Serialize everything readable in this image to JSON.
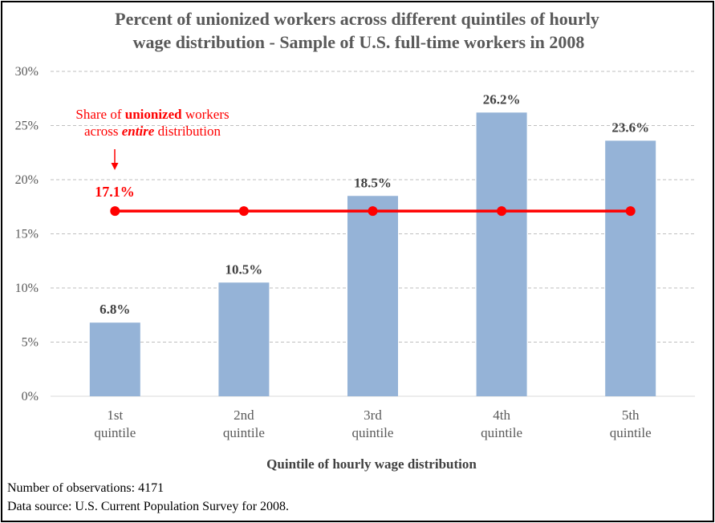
{
  "chart_data": {
    "type": "bar",
    "title_line1": "Percent of unionized workers across different quintiles of hourly",
    "title_line2": "wage distribution - Sample of U.S. full-time workers in 2008",
    "xlabel": "Quintile of hourly wage distribution",
    "ylabel": "",
    "ylim": [
      0,
      30
    ],
    "yticks": [
      0,
      5,
      10,
      15,
      20,
      25,
      30
    ],
    "ytick_labels": [
      "0%",
      "5%",
      "10%",
      "15%",
      "20%",
      "25%",
      "30%"
    ],
    "grid": true,
    "categories": [
      {
        "line1": "1st",
        "line2": "quintile"
      },
      {
        "line1": "2nd",
        "line2": "quintile"
      },
      {
        "line1": "3rd",
        "line2": "quintile"
      },
      {
        "line1": "4th",
        "line2": "quintile"
      },
      {
        "line1": "5th",
        "line2": "quintile"
      }
    ],
    "values": [
      6.8,
      10.5,
      18.5,
      26.2,
      23.6
    ],
    "data_labels": [
      "6.8%",
      "10.5%",
      "18.5%",
      "26.2%",
      "23.6%"
    ],
    "bar_color": "#95b3d7",
    "reference_line": {
      "value": 17.1,
      "label": "17.1%",
      "color": "#ff0000",
      "annotation_line1_prefix": "Share of ",
      "annotation_line1_bold": "unionized",
      "annotation_line1_suffix": " workers",
      "annotation_line2_prefix": "across ",
      "annotation_line2_emph": "entire",
      "annotation_line2_suffix": " distribution"
    }
  },
  "footer": {
    "observations": "Number of observations:  4171",
    "source": "Data source:  U.S. Current Population Survey for 2008."
  }
}
